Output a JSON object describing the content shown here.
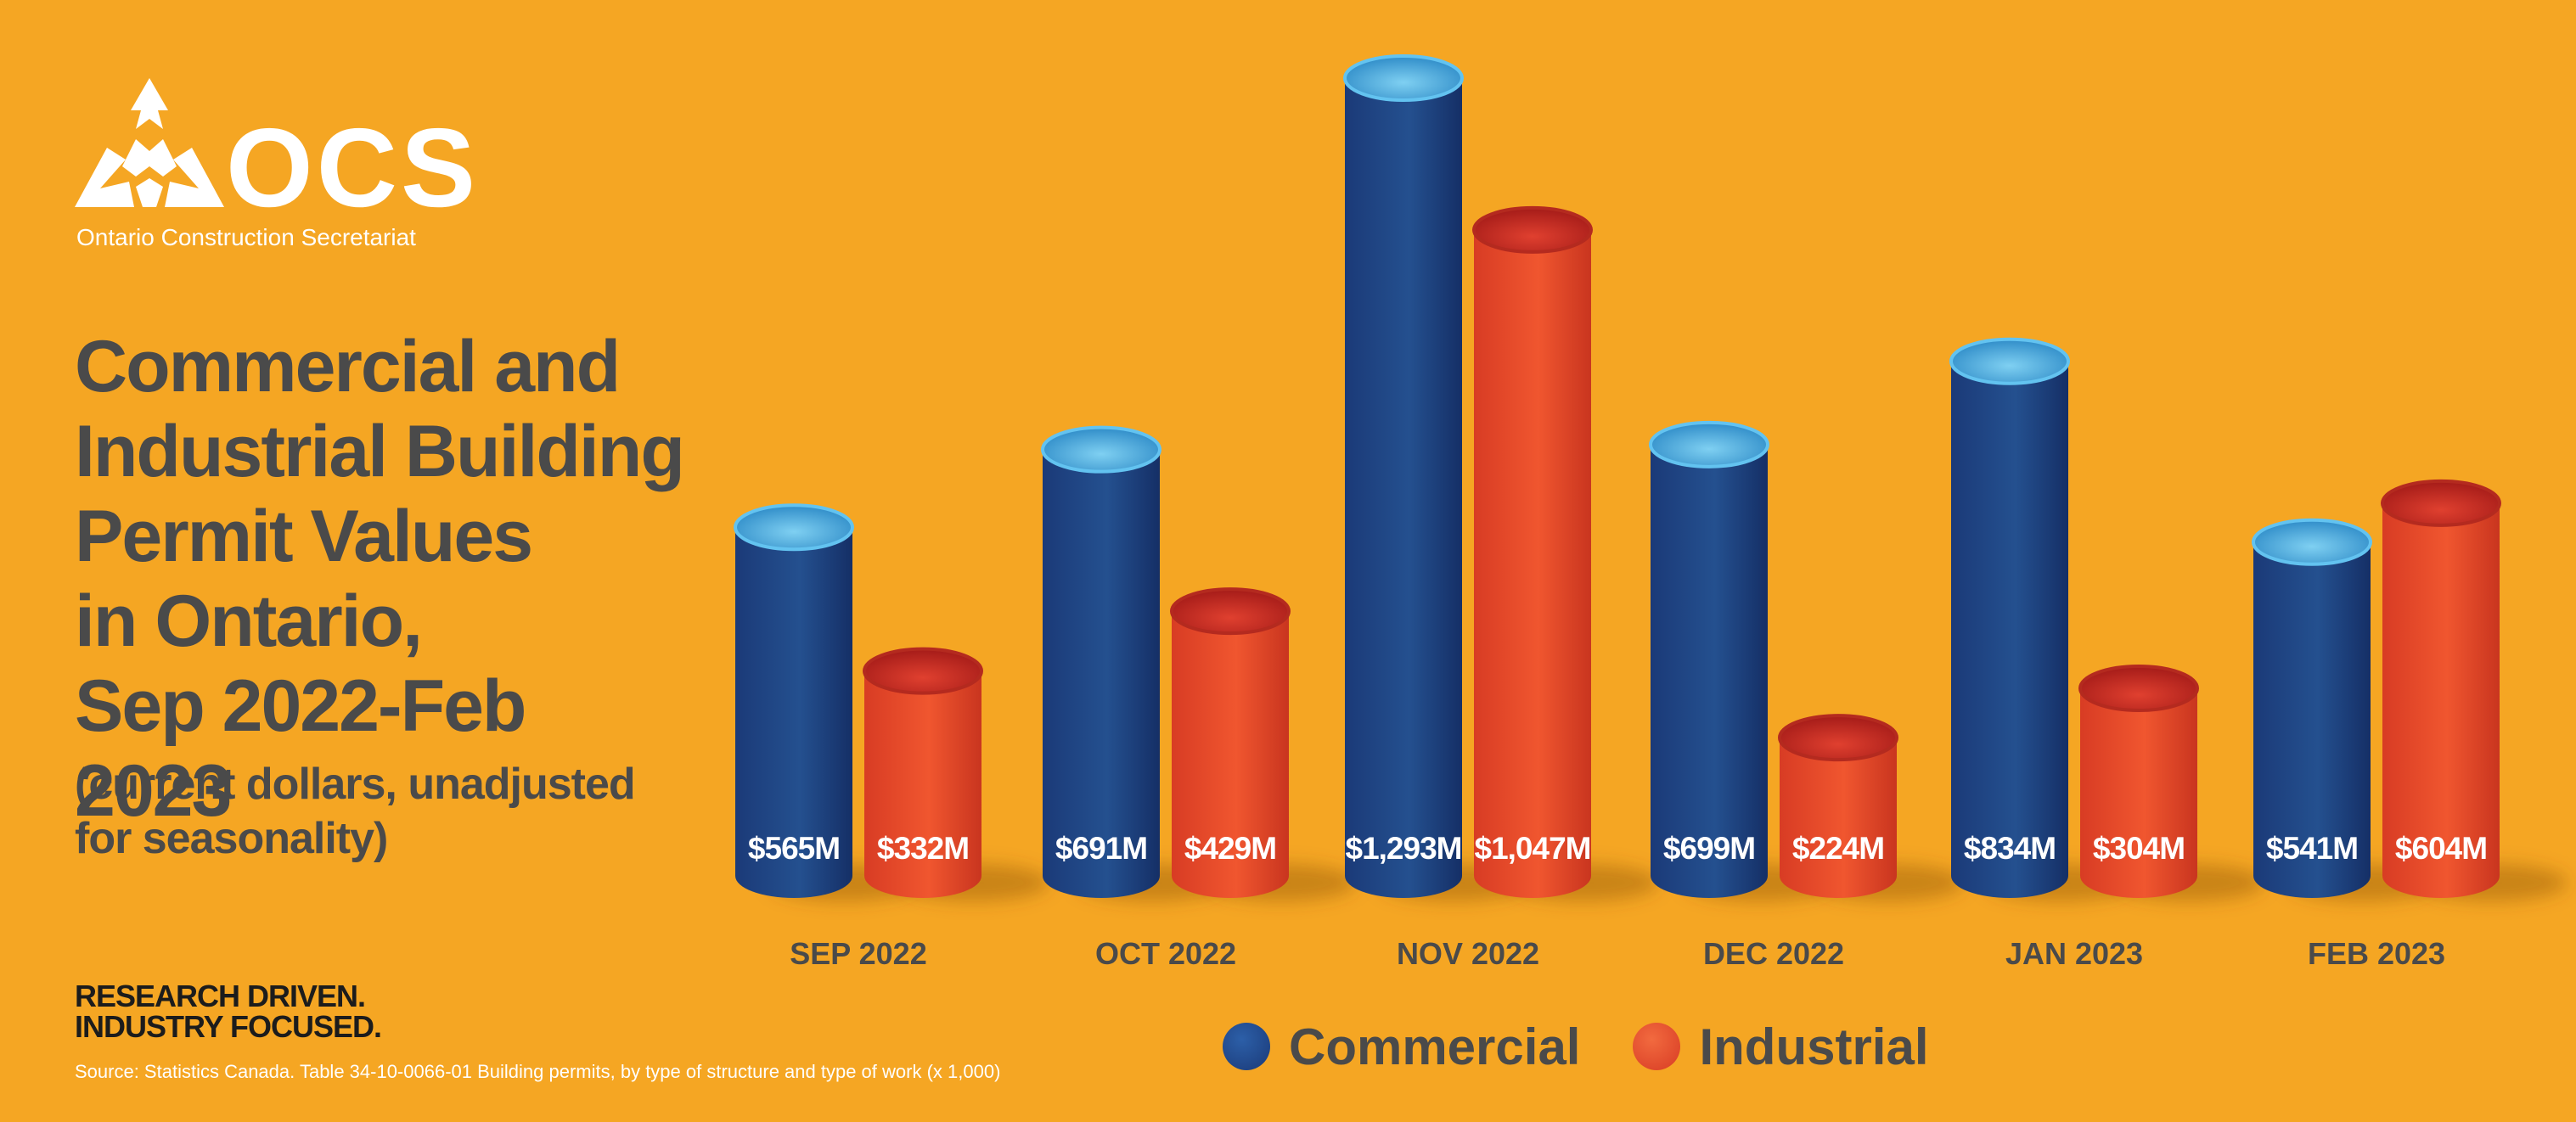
{
  "brand": {
    "wordmark": "OCS",
    "name": "Ontario Construction Secretariat",
    "tagline": "RESEARCH DRIVEN.\nINDUSTRY FOCUSED.",
    "logo_icon": "ocs-logo-mark-icon"
  },
  "header": {
    "title": "Commercial and\nIndustrial Building\nPermit Values\nin Ontario,\nSep 2022-Feb 2023",
    "subtitle": "(current dollars, unadjusted\nfor seasonality)"
  },
  "footer": {
    "source": "Source: Statistics Canada. Table 34-10-0066-01  Building permits, by type of structure and type of work (x 1,000)"
  },
  "colors": {
    "background": "#F5A623",
    "commercial": "#1F3F7E",
    "commercial_top": "#4FB3E3",
    "industrial": "#E8462A",
    "industrial_top": "#C8231F",
    "text": "#4A4A4A"
  },
  "chart_data": {
    "type": "bar",
    "style": "3d-cylinder",
    "title": "Commercial and Industrial Building Permit Values in Ontario, Sep 2022-Feb 2023",
    "subtitle": "(current dollars, unadjusted for seasonality)",
    "categories": [
      "SEP 2022",
      "OCT 2022",
      "NOV 2022",
      "DEC 2022",
      "JAN 2023",
      "FEB 2023"
    ],
    "series": [
      {
        "name": "Commercial",
        "values": [
          565,
          691,
          1293,
          699,
          834,
          541
        ],
        "labels": [
          "$565M",
          "$691M",
          "$1,293M",
          "$699M",
          "$834M",
          "$541M"
        ]
      },
      {
        "name": "Industrial",
        "values": [
          332,
          429,
          1047,
          224,
          304,
          604
        ],
        "labels": [
          "$332M",
          "$429M",
          "$1,047M",
          "$224M",
          "$304M",
          "$604M"
        ]
      }
    ],
    "unit": "$M",
    "ylim": [
      0,
      1293
    ],
    "grid": false,
    "legend_position": "bottom"
  }
}
